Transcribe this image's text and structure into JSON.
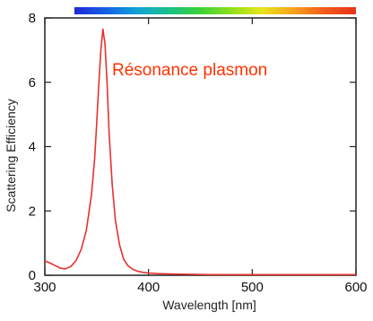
{
  "chart_data": {
    "type": "line",
    "title": "",
    "xlabel": "Wavelength [nm]",
    "ylabel": "Scattering Efficiency",
    "xlim": [
      300,
      600
    ],
    "ylim": [
      0,
      8
    ],
    "x_ticks": [
      300,
      400,
      500,
      600
    ],
    "y_ticks": [
      0,
      2,
      4,
      6,
      8
    ],
    "x_tick_labels": [
      "300",
      "400",
      "500",
      "600"
    ],
    "y_tick_labels": [
      "0",
      "2",
      "4",
      "6",
      "8"
    ],
    "grid": false,
    "legend": "none",
    "annotation": {
      "text": "Résonance plasmon",
      "color": "#ff3300"
    },
    "spectrum_bar": {
      "colors": [
        "#1f2ad6",
        "#1560e6",
        "#12a2d8",
        "#19c08a",
        "#3ad13a",
        "#8ee01c",
        "#e8e51a",
        "#f7a21c",
        "#f25a1c",
        "#e8331a"
      ]
    },
    "series": [
      {
        "color": "#e83030",
        "x": [
          300,
          305,
          310,
          315,
          320,
          325,
          330,
          335,
          340,
          345,
          348,
          350,
          352,
          354,
          356,
          358,
          360,
          362,
          365,
          368,
          372,
          376,
          380,
          385,
          390,
          395,
          400,
          410,
          420,
          440,
          460,
          480,
          500,
          550,
          600
        ],
        "y": [
          0.45,
          0.38,
          0.3,
          0.22,
          0.2,
          0.27,
          0.45,
          0.8,
          1.4,
          2.5,
          3.6,
          4.7,
          5.9,
          7.0,
          7.65,
          7.2,
          6.0,
          4.4,
          2.8,
          1.7,
          0.95,
          0.5,
          0.3,
          0.18,
          0.12,
          0.09,
          0.07,
          0.05,
          0.04,
          0.03,
          0.02,
          0.02,
          0.02,
          0.02,
          0.02
        ]
      }
    ]
  }
}
